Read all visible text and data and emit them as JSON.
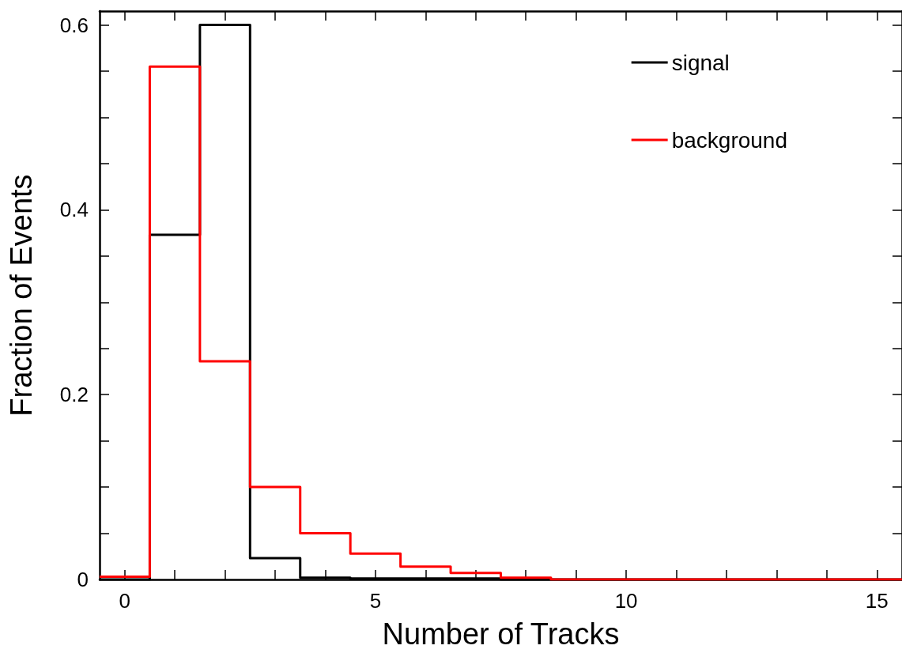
{
  "chart_data": {
    "type": "histogram",
    "xlabel": "Number of Tracks",
    "ylabel": "Fraction of Events",
    "bins": [
      -0.5,
      0.5,
      1.5,
      2.5,
      3.5,
      4.5,
      5.5,
      6.5,
      7.5,
      8.5,
      9.5,
      10.5,
      11.5,
      12.5,
      13.5,
      14.5,
      15.5
    ],
    "series": [
      {
        "name": "signal",
        "color": "#000000",
        "values": [
          0,
          0.373,
          0.6,
          0.023,
          0.002,
          0.001,
          0.001,
          0.001,
          0,
          0,
          0,
          0,
          0,
          0,
          0,
          0
        ]
      },
      {
        "name": "background",
        "color": "#ff0000",
        "values": [
          0.003,
          0.555,
          0.236,
          0.1,
          0.05,
          0.028,
          0.014,
          0.007,
          0.002,
          0,
          0,
          0,
          0,
          0,
          0,
          0
        ]
      }
    ],
    "xlim": [
      -0.5,
      15.5
    ],
    "xticks": [
      0,
      {
        "value": 1,
        "label": null
      },
      {
        "value": 2,
        "label": null
      },
      {
        "value": 3,
        "label": null
      },
      {
        "value": 4,
        "label": null
      },
      5,
      {
        "value": 6,
        "label": null
      },
      {
        "value": 7,
        "label": null
      },
      {
        "value": 8,
        "label": null
      },
      {
        "value": 9,
        "label": null
      },
      10,
      {
        "value": 11,
        "label": null
      },
      {
        "value": 12,
        "label": null
      },
      {
        "value": 13,
        "label": null
      },
      {
        "value": 14,
        "label": null
      },
      15
    ],
    "ylim": [
      0,
      0.615
    ],
    "yticks": [
      0,
      {
        "value": 0.05,
        "label": null
      },
      {
        "value": 0.1,
        "label": null
      },
      {
        "value": 0.15,
        "label": null
      },
      0.2,
      {
        "value": 0.25,
        "label": null
      },
      {
        "value": 0.3,
        "label": null
      },
      {
        "value": 0.35,
        "label": null
      },
      0.4,
      {
        "value": 0.45,
        "label": null
      },
      {
        "value": 0.5,
        "label": null
      },
      {
        "value": 0.55,
        "label": null
      },
      0.6
    ],
    "grid": false,
    "legend": "top right",
    "line_style": "solid",
    "marker": "none"
  }
}
